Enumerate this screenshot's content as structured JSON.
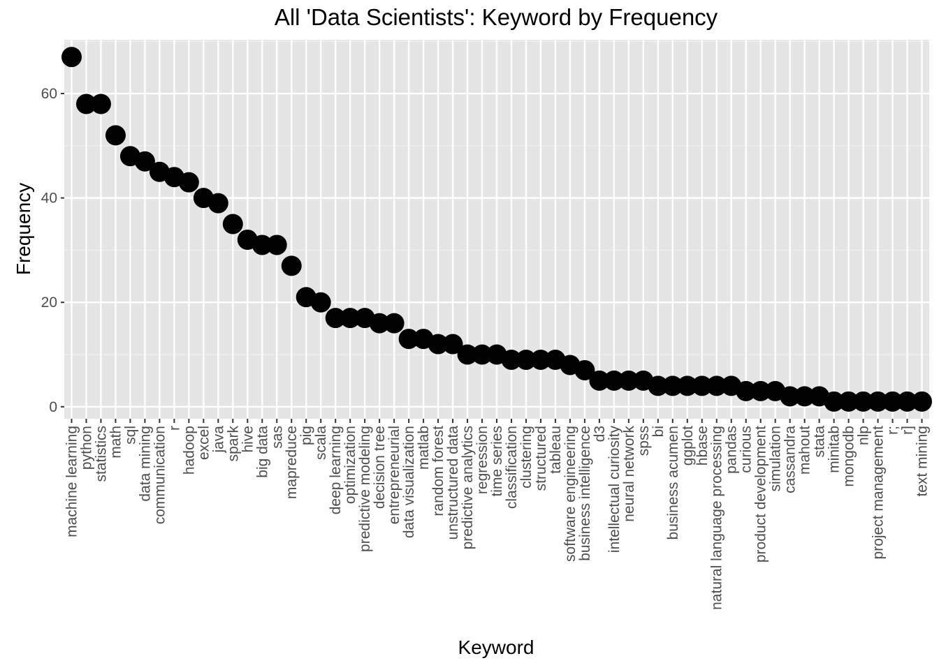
{
  "chart_data": {
    "type": "scatter",
    "title": "All 'Data Scientists': Keyword by Frequency",
    "xlabel": "Keyword",
    "ylabel": "Frequency",
    "ylim": [
      -2.3,
      70.3
    ],
    "yticks": [
      0,
      20,
      40,
      60
    ],
    "grid": true,
    "legend": "none",
    "colors": {
      "panel": "#e5e5e5",
      "grid_major": "#ffffff",
      "point": "#000000",
      "text": "#4d4d4d"
    },
    "categories": [
      "machine learning",
      "python",
      "statistics",
      "math",
      "sql",
      "data mining",
      "communication",
      "r",
      "hadoop",
      "excel",
      "java",
      "spark",
      "hive",
      "big data",
      "sas",
      "mapreduce",
      "pig",
      "scala",
      "deep learning",
      "optimization",
      "predictive modeling",
      "decision tree",
      "entrepreneurial",
      "data visualization",
      "matlab",
      "random forest",
      "unstructured data",
      "predictive analytics",
      "regression",
      "time series",
      "classification",
      "clustering",
      "structured",
      "tableau",
      "software engineering",
      "business intelligence",
      "d3",
      "intellectual curiosity",
      "neural network",
      "spss",
      "bi",
      "business acumen",
      "ggplot",
      "hbase",
      "natural language processing",
      "pandas",
      "curious",
      "product development",
      "simulation",
      "cassandra",
      "mahout",
      "stata",
      "minitab",
      "mongodb",
      "nlp",
      "project management",
      "r;",
      "r]",
      "text mining"
    ],
    "values": [
      67,
      58,
      58,
      52,
      48,
      47,
      45,
      44,
      43,
      40,
      39,
      35,
      32,
      31,
      31,
      27,
      21,
      20,
      17,
      17,
      17,
      16,
      16,
      13,
      13,
      12,
      12,
      10,
      10,
      10,
      9,
      9,
      9,
      9,
      8,
      7,
      5,
      5,
      5,
      5,
      4,
      4,
      4,
      4,
      4,
      4,
      3,
      3,
      3,
      2,
      2,
      2,
      1,
      1,
      1,
      1,
      1,
      1,
      1
    ]
  }
}
